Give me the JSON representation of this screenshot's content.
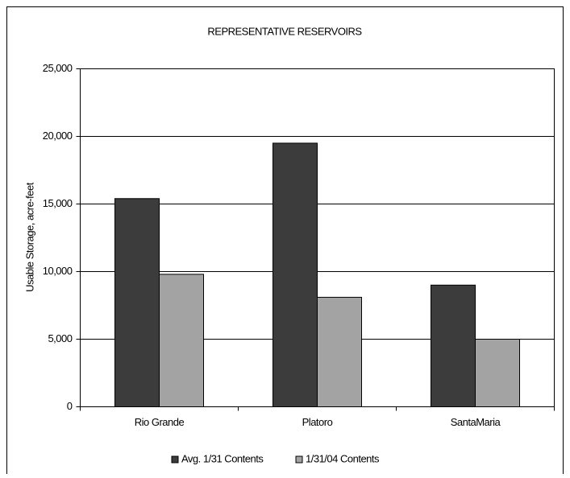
{
  "chart_data": {
    "type": "bar",
    "title": "REPRESENTATIVE RESERVOIRS",
    "y_label": "Usable Storage, acre-feet",
    "categories": [
      "Rio Grande",
      "Platoro",
      "SantaMaria"
    ],
    "series": [
      {
        "name": "Avg. 1/31 Contents",
        "color": "#3c3c3c",
        "values": [
          15400,
          19500,
          9000
        ]
      },
      {
        "name": "1/31/04 Contents",
        "color": "#a3a3a3",
        "values": [
          9800,
          8100,
          5000
        ]
      }
    ],
    "ylim": [
      0,
      25000
    ],
    "yticks": [
      0,
      {
        "value": 5000,
        "label": "5,000"
      },
      {
        "value": 10000,
        "label": "10,000"
      },
      {
        "value": 15000,
        "label": "15,000"
      },
      {
        "value": 20000,
        "label": "20,000"
      },
      {
        "value": 25000,
        "label": "25,000"
      }
    ],
    "grid": true,
    "legend": "bottom"
  }
}
